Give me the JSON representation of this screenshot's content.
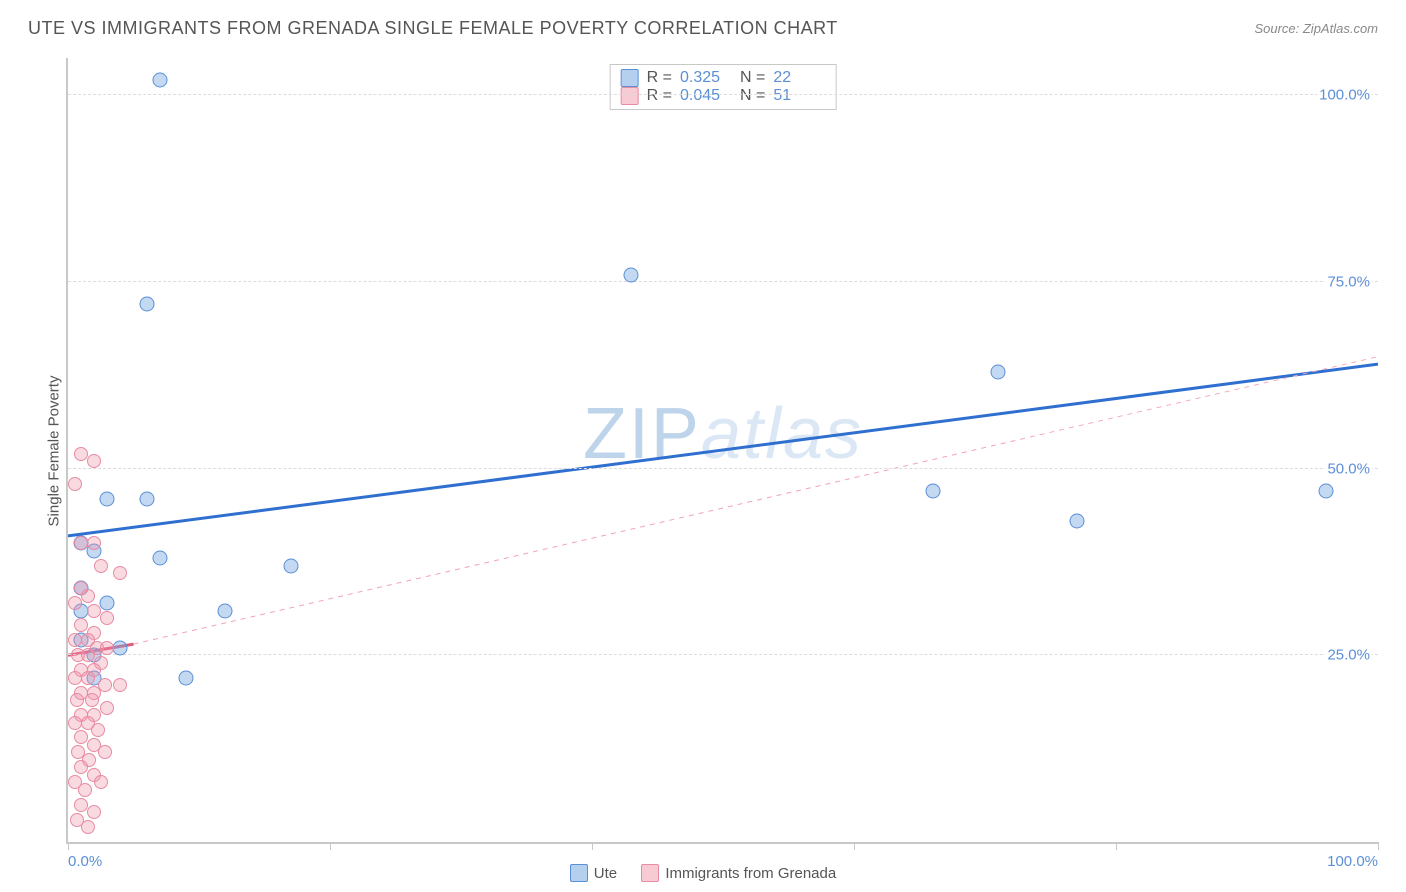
{
  "title": "UTE VS IMMIGRANTS FROM GRENADA SINGLE FEMALE POVERTY CORRELATION CHART",
  "source": "Source: ZipAtlas.com",
  "y_axis_label": "Single Female Poverty",
  "watermark": {
    "part1": "ZIP",
    "part2": "atlas"
  },
  "chart": {
    "type": "scatter",
    "xlim": [
      0,
      100
    ],
    "ylim": [
      0,
      105
    ],
    "x_ticks": [
      0,
      20,
      40,
      60,
      80,
      100
    ],
    "x_tick_labels": {
      "0": "0.0%",
      "100": "100.0%"
    },
    "y_gridlines": [
      25,
      50,
      75,
      100
    ],
    "y_tick_labels": {
      "25": "25.0%",
      "50": "50.0%",
      "75": "75.0%",
      "100": "100.0%"
    },
    "background_color": "#ffffff",
    "grid_color": "#dcdcdc",
    "axis_color": "#c8c8c8",
    "tick_label_color": "#5b8fd6",
    "marker_size_blue": 15,
    "marker_size_pink": 14,
    "series": [
      {
        "name": "Ute",
        "color_fill": "rgba(120,170,225,0.45)",
        "color_stroke": "#5b8fd6",
        "legend_label": "Ute",
        "stats": {
          "R": "0.325",
          "N": "22"
        },
        "trend": {
          "x1": 0,
          "y1": 41,
          "x2": 100,
          "y2": 64,
          "stroke": "#2f6fcf",
          "width": 3,
          "dash": "none"
        },
        "points": [
          {
            "x": 7,
            "y": 102
          },
          {
            "x": 6,
            "y": 72
          },
          {
            "x": 43,
            "y": 76
          },
          {
            "x": 71,
            "y": 63
          },
          {
            "x": 66,
            "y": 47
          },
          {
            "x": 77,
            "y": 43
          },
          {
            "x": 96,
            "y": 47
          },
          {
            "x": 3,
            "y": 46
          },
          {
            "x": 6,
            "y": 46
          },
          {
            "x": 1,
            "y": 40
          },
          {
            "x": 2,
            "y": 39
          },
          {
            "x": 7,
            "y": 38
          },
          {
            "x": 17,
            "y": 37
          },
          {
            "x": 12,
            "y": 31
          },
          {
            "x": 3,
            "y": 32
          },
          {
            "x": 1,
            "y": 34
          },
          {
            "x": 1,
            "y": 31
          },
          {
            "x": 4,
            "y": 26
          },
          {
            "x": 9,
            "y": 22
          },
          {
            "x": 1,
            "y": 27
          },
          {
            "x": 2,
            "y": 25
          },
          {
            "x": 2,
            "y": 22
          }
        ]
      },
      {
        "name": "ImmigrantsGrenada",
        "color_fill": "rgba(240,150,170,0.35)",
        "color_stroke": "#e88ba3",
        "legend_label": "Immigrants from Grenada",
        "stats": {
          "R": "0.045",
          "N": "51"
        },
        "trend_solid": {
          "x1": 0,
          "y1": 25,
          "x2": 5,
          "y2": 26.5,
          "stroke": "#e05a7a",
          "width": 3
        },
        "trend_dash": {
          "x1": 5,
          "y1": 26.5,
          "x2": 100,
          "y2": 65,
          "stroke": "#f2a6b8",
          "width": 1,
          "dash": "5,5"
        },
        "points": [
          {
            "x": 1,
            "y": 52
          },
          {
            "x": 2,
            "y": 51
          },
          {
            "x": 0.5,
            "y": 48
          },
          {
            "x": 1,
            "y": 40
          },
          {
            "x": 2,
            "y": 40
          },
          {
            "x": 2.5,
            "y": 37
          },
          {
            "x": 4,
            "y": 36
          },
          {
            "x": 1,
            "y": 34
          },
          {
            "x": 1.5,
            "y": 33
          },
          {
            "x": 0.5,
            "y": 32
          },
          {
            "x": 2,
            "y": 31
          },
          {
            "x": 3,
            "y": 30
          },
          {
            "x": 1,
            "y": 29
          },
          {
            "x": 2,
            "y": 28
          },
          {
            "x": 0.5,
            "y": 27
          },
          {
            "x": 1.5,
            "y": 27
          },
          {
            "x": 2.2,
            "y": 26
          },
          {
            "x": 3,
            "y": 26
          },
          {
            "x": 0.8,
            "y": 25
          },
          {
            "x": 1.5,
            "y": 25
          },
          {
            "x": 2.5,
            "y": 24
          },
          {
            "x": 1,
            "y": 23
          },
          {
            "x": 2,
            "y": 23
          },
          {
            "x": 0.5,
            "y": 22
          },
          {
            "x": 1.5,
            "y": 22
          },
          {
            "x": 2.8,
            "y": 21
          },
          {
            "x": 4,
            "y": 21
          },
          {
            "x": 1,
            "y": 20
          },
          {
            "x": 2,
            "y": 20
          },
          {
            "x": 0.7,
            "y": 19
          },
          {
            "x": 1.8,
            "y": 19
          },
          {
            "x": 3,
            "y": 18
          },
          {
            "x": 1,
            "y": 17
          },
          {
            "x": 2,
            "y": 17
          },
          {
            "x": 0.5,
            "y": 16
          },
          {
            "x": 1.5,
            "y": 16
          },
          {
            "x": 2.3,
            "y": 15
          },
          {
            "x": 1,
            "y": 14
          },
          {
            "x": 2,
            "y": 13
          },
          {
            "x": 0.8,
            "y": 12
          },
          {
            "x": 1.6,
            "y": 11
          },
          {
            "x": 2.8,
            "y": 12
          },
          {
            "x": 1,
            "y": 10
          },
          {
            "x": 2,
            "y": 9
          },
          {
            "x": 0.5,
            "y": 8
          },
          {
            "x": 1.3,
            "y": 7
          },
          {
            "x": 2.5,
            "y": 8
          },
          {
            "x": 1,
            "y": 5
          },
          {
            "x": 2,
            "y": 4
          },
          {
            "x": 0.7,
            "y": 3
          },
          {
            "x": 1.5,
            "y": 2
          }
        ]
      }
    ]
  },
  "stat_legend_labels": {
    "R": "R =",
    "N": "N ="
  },
  "bottom_legend": [
    {
      "swatch": "blue",
      "label": "Ute"
    },
    {
      "swatch": "pink",
      "label": "Immigrants from Grenada"
    }
  ]
}
